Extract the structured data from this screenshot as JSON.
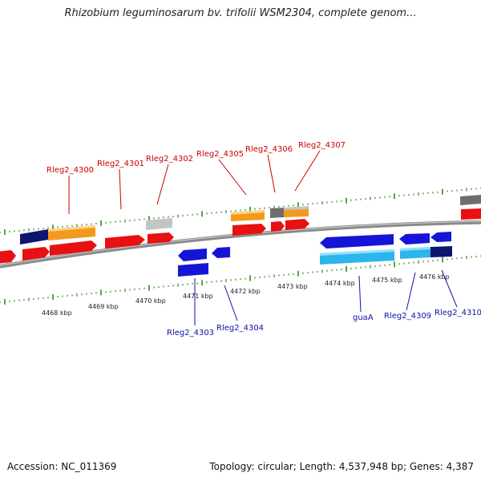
{
  "title": "Rhizobium leguminosarum bv. trifolii WSM2304, complete genom...",
  "footer": {
    "accession": "Accession: NC_011369",
    "summary": "Topology: circular; Length: 4,537,948 bp; Genes: 4,387"
  },
  "colors": {
    "backbone": "#8a8a8a",
    "forward_gene": "#e81010",
    "reverse_gene": "#1515d8",
    "orange": "#f39a1c",
    "navy": "#0d1670",
    "cyan": "#2cb6ec",
    "gray": "#6e6e6e",
    "lightgray": "#c4c4c4",
    "tick": "#2f8a1a",
    "label_forward": "#cc0000",
    "label_reverse": "#1010aa"
  },
  "scale": {
    "ticks": [
      {
        "label": "4468 kbp"
      },
      {
        "label": "4469 kbp"
      },
      {
        "label": "4470 kbp"
      },
      {
        "label": "4471 kbp"
      },
      {
        "label": "4472 kbp"
      },
      {
        "label": "4473 kbp"
      },
      {
        "label": "4474 kbp"
      },
      {
        "label": "4475 kbp"
      },
      {
        "label": "4476 kbp"
      }
    ]
  },
  "gene_labels_top": [
    {
      "text": "Rleg2_4300"
    },
    {
      "text": "Rleg2_4301"
    },
    {
      "text": "Rleg2_4302"
    },
    {
      "text": "Rleg2_4305"
    },
    {
      "text": "Rleg2_4306"
    },
    {
      "text": "Rleg2_4307"
    }
  ],
  "gene_labels_bottom": [
    {
      "text": "Rleg2_4303"
    },
    {
      "text": "Rleg2_4304"
    },
    {
      "text": "guaA"
    },
    {
      "text": "Rleg2_4309"
    },
    {
      "text": "Rleg2_4310"
    }
  ]
}
